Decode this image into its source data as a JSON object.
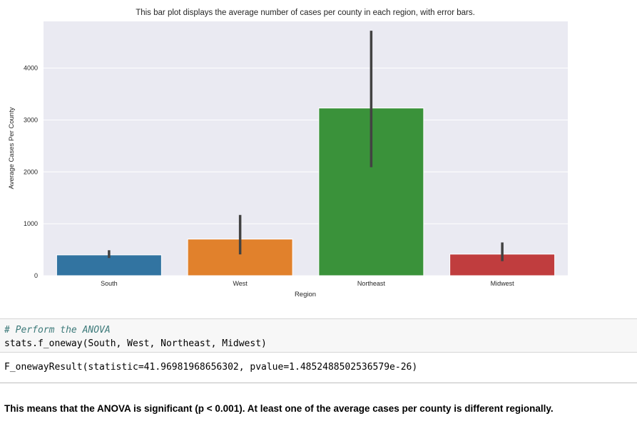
{
  "chart_data": {
    "type": "bar",
    "title": "This bar plot displays the average number of cases per county in each region, with error bars.",
    "xlabel": "Region",
    "ylabel": "Average Cases Per County",
    "categories": [
      "South",
      "West",
      "Northeast",
      "Midwest"
    ],
    "values": [
      400,
      705,
      3230,
      415
    ],
    "error_low": [
      340,
      410,
      2090,
      280
    ],
    "error_high": [
      490,
      1170,
      4720,
      640
    ],
    "yticks": [
      0,
      1000,
      2000,
      3000,
      4000
    ],
    "ylim": [
      0,
      4900
    ],
    "grid": true,
    "colors": [
      "#3274a1",
      "#e1812c",
      "#3a923a",
      "#c03d3e"
    ],
    "background": "#eaeaf2",
    "errorbar_color": "#424242"
  },
  "code_cell": {
    "comment": "# Perform the ANOVA",
    "code": "stats.f_oneway(South, West, Northeast, Midwest)"
  },
  "output_cell": {
    "text": "F_onewayResult(statistic=41.96981968656302, pvalue=1.4852488502536579e-26)"
  },
  "conclusion": {
    "text": "This means that the ANOVA is significant (p < 0.001). At least one of the average cases per county is different regionally."
  }
}
